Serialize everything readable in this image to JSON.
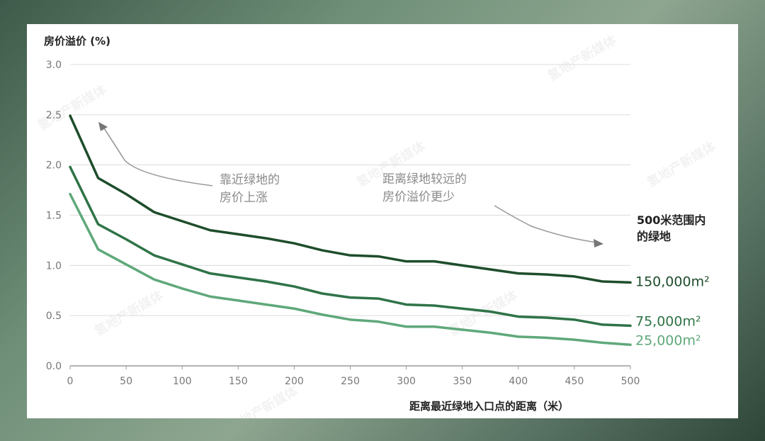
{
  "chart_data": {
    "type": "line",
    "ylabel": "房价溢价 (%)",
    "xlabel": "距离最近绿地入口点的距离（米）",
    "ylim": [
      0,
      3.0
    ],
    "xlim": [
      0,
      500
    ],
    "yticks": [
      "0.0",
      "0.5",
      "1.0",
      "1.5",
      "2.0",
      "2.5",
      "3.0"
    ],
    "xticks": [
      "0",
      "50",
      "100",
      "150",
      "200",
      "250",
      "300",
      "350",
      "400",
      "450",
      "500"
    ],
    "grid": "horizontal",
    "legend_title_lines": [
      "500米范围内",
      "的绿地"
    ],
    "x": [
      0,
      25,
      50,
      75,
      100,
      125,
      150,
      175,
      200,
      225,
      250,
      275,
      300,
      325,
      350,
      375,
      400,
      425,
      450,
      475,
      500
    ],
    "series": [
      {
        "name": "150,000m²",
        "color": "#1e4d2b",
        "values": [
          2.49,
          1.87,
          1.71,
          1.53,
          1.44,
          1.35,
          1.31,
          1.27,
          1.22,
          1.15,
          1.1,
          1.09,
          1.04,
          1.04,
          1.0,
          0.96,
          0.92,
          0.91,
          0.89,
          0.84,
          0.83
        ]
      },
      {
        "name": "75,000m²",
        "color": "#2f7347",
        "values": [
          1.98,
          1.41,
          1.26,
          1.1,
          1.01,
          0.92,
          0.88,
          0.84,
          0.79,
          0.72,
          0.68,
          0.67,
          0.61,
          0.6,
          0.57,
          0.54,
          0.49,
          0.48,
          0.46,
          0.41,
          0.4
        ]
      },
      {
        "name": "25,000m²",
        "color": "#5fa87a",
        "values": [
          1.71,
          1.16,
          1.01,
          0.86,
          0.77,
          0.69,
          0.65,
          0.61,
          0.57,
          0.51,
          0.46,
          0.44,
          0.39,
          0.39,
          0.36,
          0.33,
          0.29,
          0.28,
          0.26,
          0.23,
          0.21
        ]
      }
    ],
    "annotations": [
      {
        "lines": [
          "靠近绿地的",
          "房价上涨"
        ]
      },
      {
        "lines": [
          "距离绿地较远的",
          "房价溢价更少"
        ]
      }
    ]
  },
  "watermark": "氢地产新媒体"
}
